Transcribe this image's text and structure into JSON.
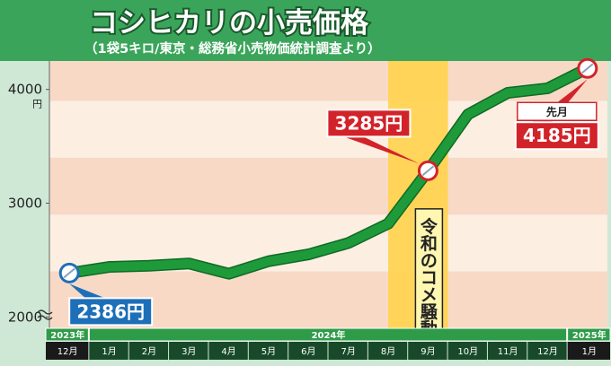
{
  "title": "コシヒカリの小売価格",
  "subtitle": "（1袋5キロ/東京・総務省小売物価統計調査より）",
  "colors": {
    "header_bg": "#3aa55a",
    "page_bg": "#cfe8d5",
    "band_light": "#fdeee2",
    "band_dark": "#f8d9c6",
    "line": "#1f9a3a",
    "highlight": "#ffd34d",
    "callout_blue": "#1d6fb8",
    "callout_red": "#d2232a",
    "axis_green": "#2e9b49",
    "axis_dark": "#184a2a"
  },
  "chart_data": {
    "type": "line",
    "y_unit": "円",
    "ylim": [
      1900,
      4250
    ],
    "y_ticks": [
      2000,
      3000,
      4000
    ],
    "year_labels": [
      {
        "label": "2023年",
        "span": [
          0,
          0
        ]
      },
      {
        "label": "2024年",
        "span": [
          1,
          12
        ]
      },
      {
        "label": "2025年",
        "span": [
          13,
          13
        ]
      }
    ],
    "categories": [
      "12月",
      "1月",
      "2月",
      "3月",
      "4月",
      "5月",
      "6月",
      "7月",
      "8月",
      "9月",
      "10月",
      "11月",
      "12月",
      "1月"
    ],
    "values": [
      2386,
      2440,
      2450,
      2470,
      2380,
      2490,
      2550,
      2650,
      2820,
      3285,
      3780,
      3970,
      4010,
      4185
    ],
    "highlight": {
      "from_index": 8.5,
      "to_index": 9.5,
      "label": "令和のコメ騒動"
    },
    "callouts": [
      {
        "index": 0,
        "text": "2386円",
        "color": "blue"
      },
      {
        "index": 9,
        "text": "3285円",
        "color": "red"
      },
      {
        "index": 13,
        "text": "4185円",
        "tag": "先月",
        "color": "red"
      }
    ]
  }
}
